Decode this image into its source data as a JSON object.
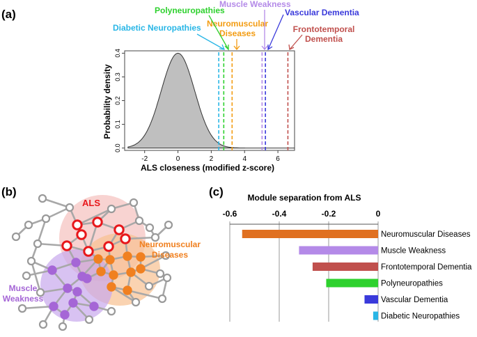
{
  "panel_labels": {
    "a": "(a)",
    "b": "(b)",
    "c": "(c)"
  },
  "chart_data": [
    {
      "id": "closeness-density",
      "type": "area",
      "xlabel": "ALS closeness (modified z-score)",
      "ylabel": "Probability density",
      "xlim": [
        -3.2,
        7.0
      ],
      "ylim": [
        -0.01,
        0.41
      ],
      "xticks": [
        -2,
        0,
        2,
        4,
        6
      ],
      "xtick_labels": [
        "-2",
        "0",
        "2",
        "4",
        "6"
      ],
      "yticks": [
        0.0,
        0.1,
        0.2,
        0.3,
        0.4
      ],
      "ytick_labels": [
        "0.0",
        "0.1",
        "0.2",
        "0.3",
        "0.4"
      ],
      "density": {
        "mean": 0.0,
        "sd": 1.0,
        "peak": 0.4,
        "range": [
          -3.0,
          7.0
        ]
      },
      "markers": [
        {
          "name": "Diabetic Neuropathies",
          "line1": "Diabetic Neuropathies",
          "line2": "",
          "x": 2.45,
          "color": "#29B6E6"
        },
        {
          "name": "Polyneuropathies",
          "line1": "Polyneuropathies",
          "line2": "",
          "x": 2.75,
          "color": "#2ED12E"
        },
        {
          "name": "Neuromuscular Diseases",
          "line1": "Neuromuscular",
          "line2": "Diseases",
          "x": 3.25,
          "color": "#F39C12"
        },
        {
          "name": "Muscle Weakness",
          "line1": "Muscle Weakness",
          "line2": "",
          "x": 5.05,
          "color": "#B48AE8"
        },
        {
          "name": "Vascular Dementia",
          "line1": "Vascular Dementia",
          "line2": "",
          "x": 5.25,
          "color": "#3A3ADB"
        },
        {
          "name": "Frontotemporal Dementia",
          "line1": "Frontotemporal",
          "line2": "Dementia",
          "x": 6.6,
          "color": "#C0504D"
        }
      ]
    },
    {
      "id": "module-separation",
      "type": "bar",
      "orientation": "horizontal",
      "title": "Module separation from ALS",
      "xlim": [
        -0.6,
        0.0
      ],
      "xticks": [
        -0.6,
        -0.4,
        -0.2,
        0.0
      ],
      "xtick_labels": [
        "-0.6",
        "-0.4",
        "-0.2",
        "0"
      ],
      "grid": true,
      "categories": [
        "Neuromuscular Diseases",
        "Muscle Weakness",
        "Frontotemporal Dementia",
        "Polyneuropathies",
        "Vascular Dementia",
        "Diabetic Neuropathies"
      ],
      "values": [
        -0.55,
        -0.32,
        -0.265,
        -0.21,
        -0.055,
        -0.02
      ],
      "colors": [
        "#E07020",
        "#B48AE8",
        "#C0504D",
        "#2ED12E",
        "#3A3ADB",
        "#29B6E6"
      ]
    }
  ],
  "network": {
    "labels": {
      "als": "ALS",
      "neuromuscular_line1": "Neuromuscular",
      "neuromuscular_line2": "Diseases",
      "muscle_line1": "Muscle",
      "muscle_line2": "Weakness"
    },
    "colors": {
      "als": "#E8171B",
      "neuromuscular": "#F08020",
      "muscle": "#A566D6",
      "other": "#999999"
    }
  }
}
